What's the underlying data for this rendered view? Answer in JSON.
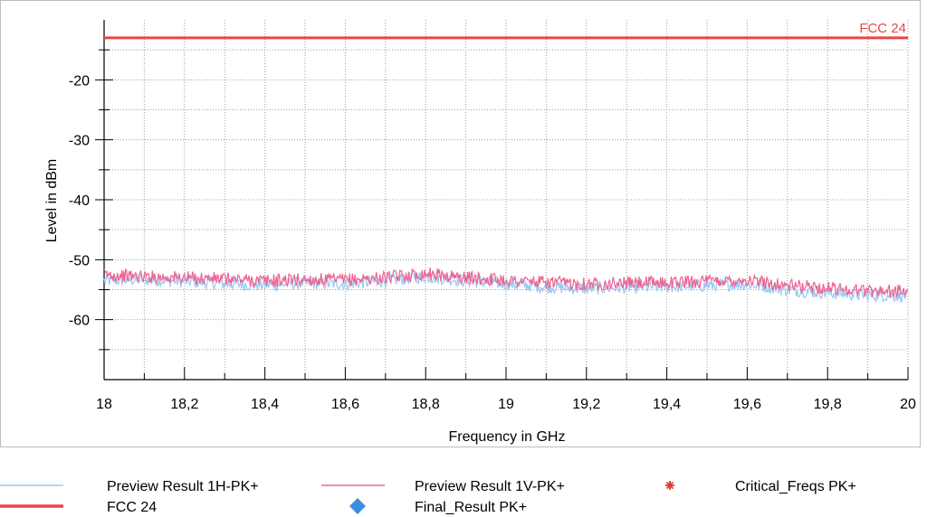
{
  "chart_data": {
    "type": "line",
    "xlabel": "Frequency in GHz",
    "ylabel": "Level in dBm",
    "xlim": [
      18,
      20
    ],
    "ylim": [
      -70,
      -10
    ],
    "x_ticks": [
      18,
      18.2,
      18.4,
      18.6,
      18.8,
      19,
      19.2,
      19.4,
      19.6,
      19.8,
      20
    ],
    "x_tick_labels": [
      "18",
      "18,2",
      "18,4",
      "18,6",
      "18,8",
      "19",
      "19,2",
      "19,4",
      "19,6",
      "19,8",
      "20"
    ],
    "y_ticks": [
      -20,
      -30,
      -40,
      -50,
      -60
    ],
    "y_tick_labels": [
      "-20",
      "-30",
      "-40",
      "-50",
      "-60"
    ],
    "grid": true,
    "limit_line": {
      "name": "FCC 24",
      "value": -13,
      "color": "#ef4444"
    },
    "series": [
      {
        "name": "Preview Result 1H-PK+",
        "color": "#9cc8f0",
        "x": [
          18,
          18.1,
          18.2,
          18.3,
          18.4,
          18.5,
          18.6,
          18.7,
          18.8,
          18.9,
          19,
          19.1,
          19.2,
          19.3,
          19.4,
          19.5,
          19.6,
          19.7,
          19.8,
          19.9,
          20
        ],
        "values": [
          -53.5,
          -53.3,
          -53.6,
          -54.0,
          -54.2,
          -53.9,
          -54.0,
          -53.5,
          -52.8,
          -53.5,
          -54.0,
          -54.5,
          -54.8,
          -54.6,
          -54.5,
          -54.3,
          -54.0,
          -55.0,
          -55.5,
          -55.9,
          -56.0
        ]
      },
      {
        "name": "Preview Result 1V-PK+",
        "color": "#f06292",
        "x": [
          18,
          18.1,
          18.2,
          18.3,
          18.4,
          18.5,
          18.6,
          18.7,
          18.8,
          18.9,
          19,
          19.1,
          19.2,
          19.3,
          19.4,
          19.5,
          19.6,
          19.7,
          19.8,
          19.9,
          20
        ],
        "values": [
          -52.5,
          -52.8,
          -53.0,
          -53.2,
          -53.5,
          -53.3,
          -53.4,
          -53.0,
          -52.3,
          -53.0,
          -53.4,
          -53.8,
          -54.0,
          -53.9,
          -53.8,
          -53.6,
          -53.4,
          -54.3,
          -54.7,
          -55.1,
          -55.3
        ]
      }
    ],
    "legend": {
      "placement": "bottom",
      "entries": [
        {
          "label": "Preview Result 1H-PK+",
          "marker": "line",
          "color": "#9cc8f0"
        },
        {
          "label": "Preview Result 1V-PK+",
          "marker": "line",
          "color": "#f06292"
        },
        {
          "label": "Critical_Freqs PK+",
          "marker": "asterisk",
          "color": "#e53935"
        },
        {
          "label": "FCC 24",
          "marker": "thick-line",
          "color": "#ef4444"
        },
        {
          "label": "Final_Result PK+",
          "marker": "diamond",
          "color": "#3b8fdd"
        }
      ]
    }
  }
}
